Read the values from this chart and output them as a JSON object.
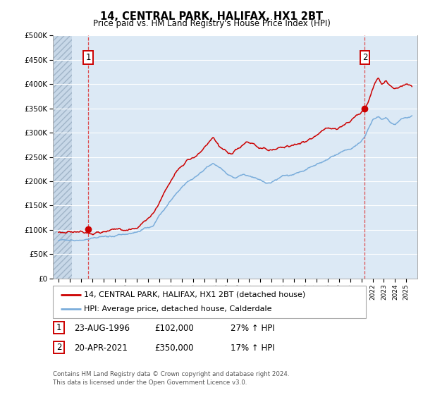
{
  "title": "14, CENTRAL PARK, HALIFAX, HX1 2BT",
  "subtitle": "Price paid vs. HM Land Registry's House Price Index (HPI)",
  "ylim": [
    0,
    500000
  ],
  "yticks": [
    0,
    50000,
    100000,
    150000,
    200000,
    250000,
    300000,
    350000,
    400000,
    450000,
    500000
  ],
  "ytick_labels": [
    "£0",
    "£50K",
    "£100K",
    "£150K",
    "£200K",
    "£250K",
    "£300K",
    "£350K",
    "£400K",
    "£450K",
    "£500K"
  ],
  "sale1_date_num": 1996.65,
  "sale1_price": 102000,
  "sale2_date_num": 2021.3,
  "sale2_price": 350000,
  "vline1_x": 1996.65,
  "vline2_x": 2021.3,
  "red_color": "#cc0000",
  "blue_color": "#7aaddb",
  "legend_label_red": "14, CENTRAL PARK, HALIFAX, HX1 2BT (detached house)",
  "legend_label_blue": "HPI: Average price, detached house, Calderdale",
  "table_row1": [
    "1",
    "23-AUG-1996",
    "£102,000",
    "27% ↑ HPI"
  ],
  "table_row2": [
    "2",
    "20-APR-2021",
    "£350,000",
    "17% ↑ HPI"
  ],
  "footer": "Contains HM Land Registry data © Crown copyright and database right 2024.\nThis data is licensed under the Open Government Licence v3.0.",
  "background_color": "#ffffff",
  "plot_bg_color": "#dce9f5",
  "grid_color": "#ffffff",
  "xlim_start": 1993.5,
  "xlim_end": 2026.0,
  "hatch_end": 1995.2
}
